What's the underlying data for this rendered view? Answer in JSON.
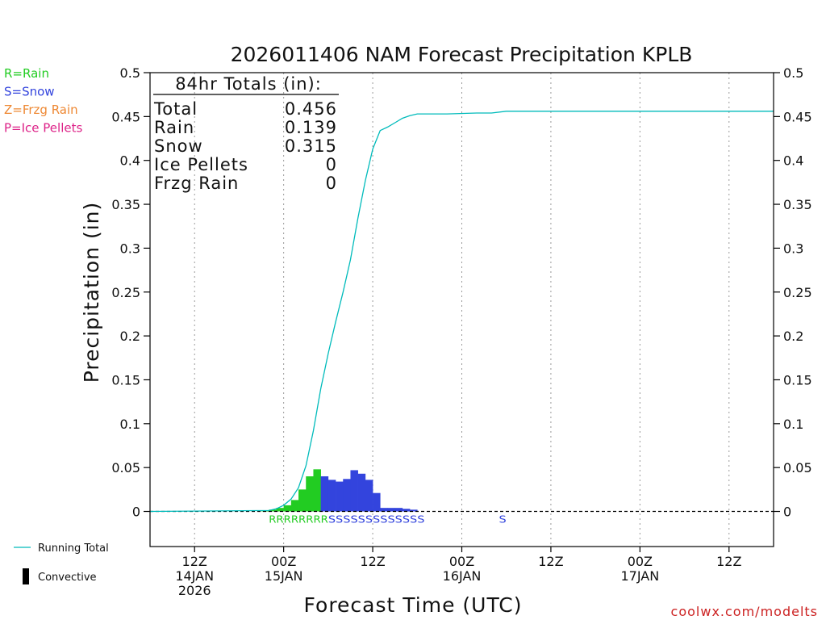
{
  "chart_data": {
    "type": "bar",
    "title": "2026011406 NAM Forecast Precipitation KPLB",
    "xlabel": "Forecast Time (UTC)",
    "ylabel": "Precipitation (in)",
    "ylim": [
      -0.04,
      0.5
    ],
    "x_unit": "forecast hours from 2026-01-14 06Z",
    "xlim": [
      0,
      84
    ],
    "y_ticks": [
      "0",
      "0.05",
      "0.1",
      "0.15",
      "0.2",
      "0.25",
      "0.3",
      "0.35",
      "0.4",
      "0.45",
      "0.5"
    ],
    "y_tick_values": [
      0,
      0.05,
      0.1,
      0.15,
      0.2,
      0.25,
      0.3,
      0.35,
      0.4,
      0.45,
      0.5
    ],
    "x_ticks": [
      {
        "hour": 6,
        "lines": [
          "12Z",
          "14JAN",
          "2026"
        ]
      },
      {
        "hour": 18,
        "lines": [
          "00Z",
          "15JAN"
        ]
      },
      {
        "hour": 30,
        "lines": [
          "12Z"
        ]
      },
      {
        "hour": 42,
        "lines": [
          "00Z",
          "16JAN"
        ]
      },
      {
        "hour": 54,
        "lines": [
          "12Z"
        ]
      },
      {
        "hour": 66,
        "lines": [
          "00Z",
          "17JAN"
        ]
      },
      {
        "hour": 78,
        "lines": [
          "12Z"
        ]
      }
    ],
    "legend_types": [
      {
        "label": "R=Rain",
        "color": "#22cc22"
      },
      {
        "label": "S=Snow",
        "color": "#3344dd"
      },
      {
        "label": "Z=Frzg Rain",
        "color": "#ee8833"
      },
      {
        "label": "P=Ice Pellets",
        "color": "#dd2288"
      }
    ],
    "legend_lines": [
      {
        "label": "Running Total",
        "color": "#00bbbb",
        "kind": "line"
      },
      {
        "label": "Convective",
        "color": "#000000",
        "kind": "bar"
      }
    ],
    "totals_box": {
      "header": "84hr Totals (in):",
      "rows": [
        {
          "label": "Total",
          "value": "0.456"
        },
        {
          "label": "Rain",
          "value": "0.139"
        },
        {
          "label": "Snow",
          "value": "0.315"
        },
        {
          "label": "Ice Pellets",
          "value": "0"
        },
        {
          "label": "Frzg Rain",
          "value": "0"
        }
      ]
    },
    "bars": [
      {
        "hour": 16,
        "value": 0.001,
        "type": "rain"
      },
      {
        "hour": 17,
        "value": 0.002,
        "type": "rain"
      },
      {
        "hour": 18,
        "value": 0.004,
        "type": "rain"
      },
      {
        "hour": 19,
        "value": 0.007,
        "type": "rain"
      },
      {
        "hour": 20,
        "value": 0.013,
        "type": "rain"
      },
      {
        "hour": 21,
        "value": 0.025,
        "type": "rain"
      },
      {
        "hour": 22,
        "value": 0.04,
        "type": "rain"
      },
      {
        "hour": 23,
        "value": 0.048,
        "type": "rain"
      },
      {
        "hour": 24,
        "value": 0.04,
        "type": "snow"
      },
      {
        "hour": 25,
        "value": 0.036,
        "type": "snow"
      },
      {
        "hour": 26,
        "value": 0.034,
        "type": "snow"
      },
      {
        "hour": 27,
        "value": 0.037,
        "type": "snow"
      },
      {
        "hour": 28,
        "value": 0.047,
        "type": "snow"
      },
      {
        "hour": 29,
        "value": 0.043,
        "type": "snow"
      },
      {
        "hour": 30,
        "value": 0.036,
        "type": "snow"
      },
      {
        "hour": 31,
        "value": 0.021,
        "type": "snow"
      },
      {
        "hour": 32,
        "value": 0.004,
        "type": "snow"
      },
      {
        "hour": 33,
        "value": 0.004,
        "type": "snow"
      },
      {
        "hour": 34,
        "value": 0.004,
        "type": "snow"
      },
      {
        "hour": 35,
        "value": 0.003,
        "type": "snow"
      },
      {
        "hour": 36,
        "value": 0.002,
        "type": "snow"
      }
    ],
    "type_marks": [
      {
        "hour": 16.5,
        "text": "RRRRRRRR",
        "type": "rain"
      },
      {
        "hour": 24.5,
        "text": "SSSSSSSSSSSSS",
        "type": "snow"
      },
      {
        "hour": 47.5,
        "text": "S",
        "type": "snow"
      }
    ],
    "running_total": {
      "x": [
        0,
        16,
        17,
        18,
        19,
        20,
        21,
        22,
        23,
        24,
        25,
        26,
        27,
        28,
        29,
        30,
        31,
        32,
        33,
        34,
        35,
        36,
        37,
        40,
        44,
        46,
        48,
        60,
        84
      ],
      "y": [
        0,
        0.001,
        0.003,
        0.007,
        0.014,
        0.027,
        0.052,
        0.092,
        0.14,
        0.18,
        0.216,
        0.25,
        0.287,
        0.334,
        0.377,
        0.413,
        0.434,
        0.438,
        0.443,
        0.448,
        0.451,
        0.453,
        0.453,
        0.453,
        0.454,
        0.454,
        0.456,
        0.456,
        0.456
      ]
    },
    "credit": "coolwx.com/modelts"
  }
}
